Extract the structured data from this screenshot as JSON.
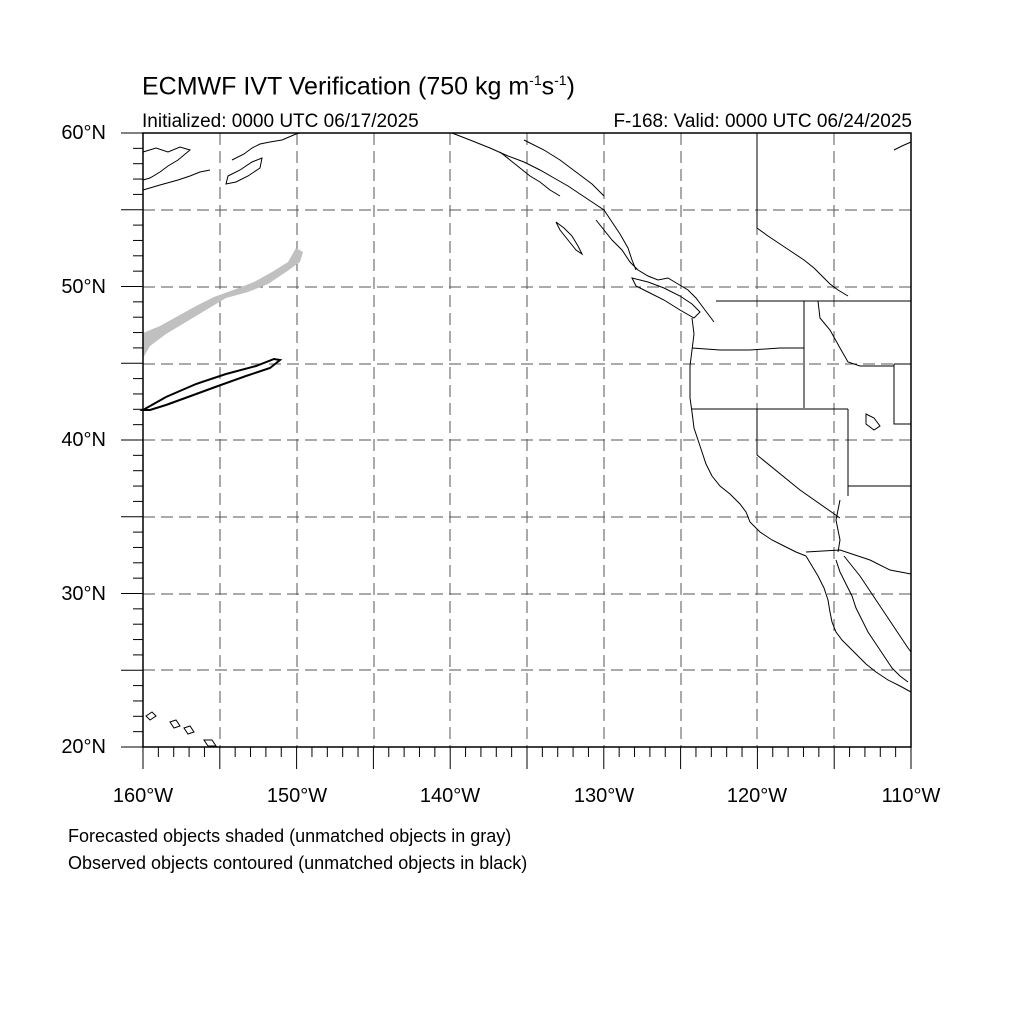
{
  "map": {
    "title_main": "ECMWF IVT Verification (750 kg m",
    "title_sup1": "-1",
    "title_mid": "s",
    "title_sup2": "-1",
    "title_end": ")",
    "initialized": "Initialized: 0000 UTC 06/17/2025",
    "valid": "F-168: Valid: 0000 UTC 06/24/2025",
    "lat_labels": [
      "60°N",
      "50°N",
      "40°N",
      "30°N",
      "20°N"
    ],
    "lon_labels": [
      "160°W",
      "150°W",
      "140°W",
      "130°W",
      "120°W",
      "110°W"
    ],
    "extent": {
      "lon_min": -160,
      "lon_max": -110,
      "lat_min": 20,
      "lat_max": 60
    }
  },
  "legend": {
    "line1": "Forecasted objects shaded (unmatched objects in gray)",
    "line2": "Observed objects contoured (unmatched objects in black)"
  },
  "colors": {
    "forecast_unmatched": "#c0c0c0",
    "observed_unmatched": "#000000",
    "grid": "#555555"
  }
}
